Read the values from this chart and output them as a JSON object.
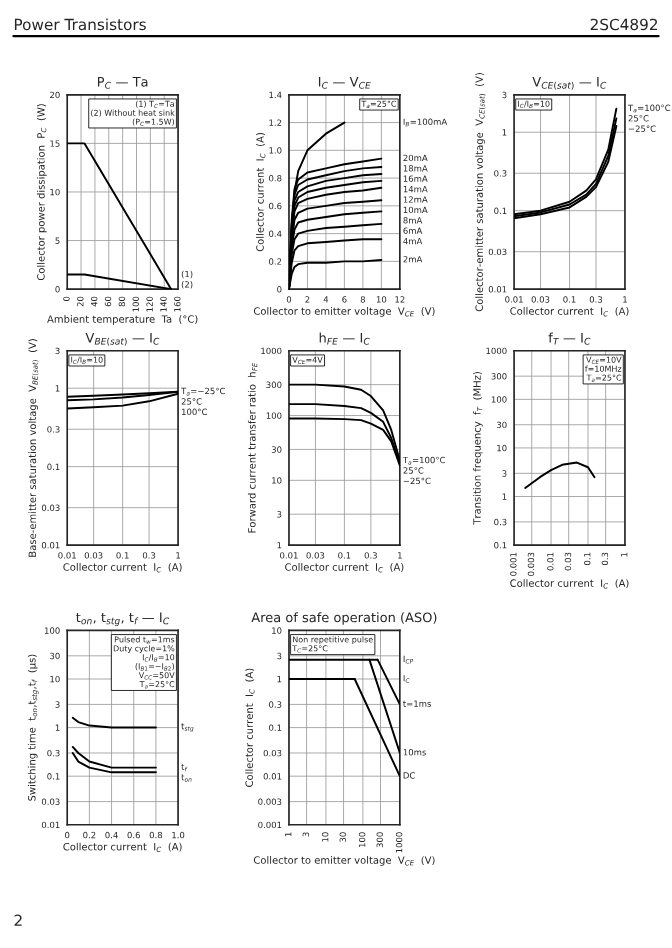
{
  "chart_data": [
    {
      "type": "other",
      "annotations": [
        "Power Transistors",
        "2SC4892",
        "2"
      ]
    },
    {
      "type": "line",
      "title": "P$_{C}$ — Ta",
      "xlabel": "Ambient temperature  Ta  (°C)",
      "ylabel": "Collector power dissipation  P$_{C}$  (W)",
      "xlim": [
        0,
        160
      ],
      "xticks": [
        0,
        20,
        40,
        60,
        80,
        100,
        120,
        140,
        160
      ],
      "ylim": [
        0,
        20
      ],
      "yticks": [
        0,
        5,
        10,
        15,
        20
      ],
      "grid": true,
      "legend": false,
      "annotations": [
        "(1) T$_{C}$=Ta\n(2) Without heat sink\n(P$_{C}$=1.5W)"
      ],
      "series": [
        {
          "name": "(1)",
          "color": "#000000",
          "x": [
            0,
            25,
            150
          ],
          "values": [
            15,
            15,
            0
          ]
        },
        {
          "name": "(2)",
          "color": "#000000",
          "x": [
            0,
            25,
            150
          ],
          "values": [
            1.5,
            1.5,
            0
          ]
        }
      ]
    },
    {
      "type": "line",
      "title": "I$_{C}$ — V$_{CE}$",
      "xlabel": "Collector to emitter voltage  V$_{CE}$  (V)",
      "ylabel": "Collector current  I$_{C}$  (A)",
      "xlim": [
        0,
        12
      ],
      "xticks": [
        0,
        2,
        4,
        6,
        8,
        10,
        12
      ],
      "ylim": [
        0,
        1.4
      ],
      "yticks": [
        0,
        0.2,
        0.4,
        0.6,
        0.8,
        {
          "value": 1.0,
          "label": "1.0"
        },
        1.2,
        1.4
      ],
      "grid": true,
      "annotations": [
        "T$_{a}$=25°C"
      ],
      "series": [
        {
          "name": "I$_{B}$=100mA",
          "color": "#000000",
          "x": [
            0,
            0.3,
            0.6,
            1,
            2,
            4,
            6
          ],
          "values": [
            0,
            0.45,
            0.7,
            0.85,
            1.0,
            1.12,
            1.2
          ]
        },
        {
          "name": "20mA",
          "color": "#000000",
          "x": [
            0,
            0.3,
            0.6,
            1,
            2,
            4,
            6,
            8,
            10
          ],
          "values": [
            0,
            0.5,
            0.72,
            0.79,
            0.84,
            0.87,
            0.9,
            0.92,
            0.94
          ]
        },
        {
          "name": "18mA",
          "color": "#000000",
          "x": [
            0,
            0.3,
            0.6,
            1,
            2,
            4,
            6,
            8,
            10
          ],
          "values": [
            0,
            0.47,
            0.68,
            0.75,
            0.79,
            0.82,
            0.85,
            0.87,
            0.88
          ]
        },
        {
          "name": "16mA",
          "color": "#000000",
          "x": [
            0,
            0.3,
            0.6,
            1,
            2,
            4,
            6,
            8,
            10
          ],
          "values": [
            0,
            0.44,
            0.64,
            0.7,
            0.74,
            0.78,
            0.8,
            0.82,
            0.83
          ]
        },
        {
          "name": "14mA",
          "color": "#000000",
          "x": [
            0,
            0.3,
            0.6,
            1,
            2,
            4,
            6,
            8,
            10
          ],
          "values": [
            0,
            0.41,
            0.6,
            0.66,
            0.7,
            0.73,
            0.75,
            0.77,
            0.78
          ]
        },
        {
          "name": "12mA",
          "color": "#000000",
          "x": [
            0,
            0.3,
            0.6,
            1,
            2,
            4,
            6,
            8,
            10
          ],
          "values": [
            0,
            0.39,
            0.56,
            0.62,
            0.65,
            0.68,
            0.7,
            0.71,
            0.73
          ]
        },
        {
          "name": "10mA",
          "color": "#000000",
          "x": [
            0,
            0.3,
            0.6,
            1,
            2,
            4,
            6,
            8,
            10
          ],
          "values": [
            0,
            0.34,
            0.5,
            0.55,
            0.58,
            0.6,
            0.62,
            0.63,
            0.64
          ]
        },
        {
          "name": "8mA",
          "color": "#000000",
          "x": [
            0,
            0.3,
            0.6,
            1,
            2,
            4,
            6,
            8,
            10
          ],
          "values": [
            0,
            0.3,
            0.43,
            0.48,
            0.5,
            0.52,
            0.54,
            0.55,
            0.56
          ]
        },
        {
          "name": "6mA",
          "color": "#000000",
          "x": [
            0,
            0.3,
            0.6,
            1,
            2,
            4,
            6,
            8,
            10
          ],
          "values": [
            0,
            0.25,
            0.36,
            0.4,
            0.42,
            0.44,
            0.45,
            0.46,
            0.47
          ]
        },
        {
          "name": "4mA",
          "color": "#000000",
          "x": [
            0,
            0.3,
            0.6,
            1,
            2,
            4,
            6,
            8,
            10
          ],
          "values": [
            0,
            0.19,
            0.28,
            0.31,
            0.33,
            0.34,
            0.35,
            0.36,
            0.36
          ]
        },
        {
          "name": "2mA",
          "color": "#000000",
          "x": [
            0,
            0.3,
            0.6,
            1,
            2,
            4,
            6,
            8,
            10
          ],
          "values": [
            0,
            0.11,
            0.16,
            0.18,
            0.19,
            0.19,
            0.2,
            0.2,
            0.21
          ]
        }
      ]
    },
    {
      "type": "line",
      "title": "V$_{CE(sat)}$ — I$_{C}$",
      "xlabel": "Collector current  I$_{C}$  (A)",
      "ylabel": "Collector-emitter saturation voltage  V$_{CE(sat)}$  (V)",
      "log": "xy",
      "xlim": [
        0.01,
        1
      ],
      "xticks": [
        0.01,
        0.03,
        0.1,
        0.3,
        1
      ],
      "ylim": [
        0.01,
        3
      ],
      "yticks": [
        0.01,
        0.03,
        0.1,
        0.3,
        1,
        3
      ],
      "grid": true,
      "legend": false,
      "annotations": [
        "I$_{C}$/I$_{B}$=10"
      ],
      "series": [
        {
          "name": "T$_{a}$=100°C",
          "color": "#000000",
          "x": [
            0.01,
            0.03,
            0.1,
            0.2,
            0.3,
            0.5,
            0.7
          ],
          "values": [
            0.09,
            0.1,
            0.13,
            0.18,
            0.25,
            0.6,
            2
          ]
        },
        {
          "name": "25°C",
          "color": "#000000",
          "x": [
            0.01,
            0.03,
            0.1,
            0.2,
            0.3,
            0.5,
            0.7
          ],
          "values": [
            0.085,
            0.095,
            0.12,
            0.16,
            0.22,
            0.5,
            1.5
          ]
        },
        {
          "name": "−25°C",
          "color": "#000000",
          "x": [
            0.01,
            0.03,
            0.1,
            0.2,
            0.3,
            0.5,
            0.7
          ],
          "values": [
            0.08,
            0.09,
            0.11,
            0.15,
            0.2,
            0.42,
            1.2
          ]
        }
      ]
    },
    {
      "type": "line",
      "title": "V$_{BE(sat)}$ — I$_{C}$",
      "xlabel": "Collector current  I$_{C}$  (A)",
      "ylabel": "Base-emitter saturation voltage  V$_{BE(sat)}$  (V)",
      "log": "xy",
      "xlim": [
        0.01,
        1
      ],
      "xticks": [
        0.01,
        0.03,
        0.1,
        0.3,
        1
      ],
      "ylim": [
        0.01,
        3
      ],
      "yticks": [
        0.01,
        0.03,
        0.1,
        0.3,
        1,
        3
      ],
      "grid": true,
      "legend": false,
      "annotations": [
        "I$_{C}$/I$_{B}$=10"
      ],
      "series": [
        {
          "name": "T$_{a}$=−25°C",
          "color": "#000000",
          "x": [
            0.01,
            0.03,
            0.1,
            0.3,
            1
          ],
          "values": [
            0.78,
            0.8,
            0.83,
            0.86,
            0.9
          ]
        },
        {
          "name": "25°C",
          "color": "#000000",
          "x": [
            0.01,
            0.03,
            0.1,
            0.3,
            1
          ],
          "values": [
            0.7,
            0.72,
            0.76,
            0.82,
            0.9
          ]
        },
        {
          "name": "100°C",
          "color": "#000000",
          "x": [
            0.01,
            0.03,
            0.1,
            0.3,
            1
          ],
          "values": [
            0.55,
            0.57,
            0.6,
            0.68,
            0.85
          ]
        }
      ]
    },
    {
      "type": "line",
      "title": "h$_{FE}$ — I$_{C}$",
      "xlabel": "Collector current  I$_{C}$  (A)",
      "ylabel": "Forward current transfer ratio  h$_{FE}$",
      "log": "xy",
      "xlim": [
        0.01,
        1
      ],
      "xticks": [
        0.01,
        0.03,
        0.1,
        0.3,
        1
      ],
      "ylim": [
        1,
        1000
      ],
      "yticks": [
        1,
        3,
        10,
        30,
        100,
        300,
        1000
      ],
      "grid": true,
      "legend": false,
      "annotations": [
        "V$_{CE}$=4V"
      ],
      "series": [
        {
          "name": "T$_{a}$=100°C",
          "color": "#000000",
          "x": [
            0.01,
            0.03,
            0.1,
            0.2,
            0.3,
            0.5,
            0.7,
            1
          ],
          "values": [
            300,
            300,
            280,
            250,
            200,
            120,
            60,
            20
          ]
        },
        {
          "name": "25°C",
          "color": "#000000",
          "x": [
            0.01,
            0.03,
            0.1,
            0.2,
            0.3,
            0.5,
            0.7,
            1
          ],
          "values": [
            150,
            150,
            140,
            130,
            110,
            80,
            45,
            18
          ]
        },
        {
          "name": "−25°C",
          "color": "#000000",
          "x": [
            0.01,
            0.03,
            0.1,
            0.2,
            0.3,
            0.5,
            0.7,
            1
          ],
          "values": [
            90,
            90,
            88,
            85,
            75,
            60,
            40,
            17
          ]
        }
      ]
    },
    {
      "type": "line",
      "title": "f$_{T}$ — I$_{C}$",
      "xlabel": "Collector current  I$_{C}$  (A)",
      "ylabel": "Transition frequency  f$_{T}$  (MHz)",
      "log": "xy",
      "xlim": [
        0.001,
        1
      ],
      "xticks": [
        0.001,
        0.003,
        0.01,
        0.03,
        0.1,
        0.3,
        1
      ],
      "ylim": [
        0.1,
        1000
      ],
      "yticks": [
        0.1,
        0.3,
        1,
        3,
        10,
        30,
        100,
        300,
        1000
      ],
      "grid": true,
      "legend": false,
      "annotations": [
        "V$_{CE}$=10V\nf=10MHz\nT$_{a}$=25°C"
      ],
      "series": [
        {
          "color": "#000000",
          "x": [
            0.002,
            0.005,
            0.01,
            0.02,
            0.05,
            0.1,
            0.15
          ],
          "values": [
            1.5,
            2.5,
            3.5,
            4.5,
            5,
            4,
            2.5
          ]
        }
      ]
    },
    {
      "type": "line",
      "title": "t$_{on}$, t$_{stg}$, t$_{f}$ — I$_{C}$",
      "xlabel": "Collector current  I$_{C}$  (A)",
      "ylabel": "Switching time  t$_{on}$,t$_{stg}$,t$_{f}$  (µs)",
      "log": "y",
      "xlim": [
        0,
        1.0
      ],
      "xticks": [
        0,
        0.2,
        0.4,
        0.6,
        0.8,
        {
          "value": 1.0,
          "label": "1.0"
        }
      ],
      "ylim": [
        0.01,
        100
      ],
      "yticks": [
        0.01,
        0.03,
        0.1,
        0.3,
        1,
        3,
        10,
        30,
        100
      ],
      "grid": true,
      "legend": false,
      "annotations": [
        "Pulsed t$_{w}$=1ms\nDuty cycle=1%\nI$_{C}$/I$_{B}$=10\n(I$_{B1}$=−I$_{B2}$)\nV$_{CC}$=50V\nT$_{a}$=25°C"
      ],
      "series": [
        {
          "name": "t$_{stg}$",
          "color": "#000000",
          "x": [
            0.05,
            0.1,
            0.2,
            0.4,
            0.6,
            0.8
          ],
          "values": [
            1.6,
            1.3,
            1.1,
            1.0,
            1.0,
            1.0
          ]
        },
        {
          "name": "t$_{f}$",
          "color": "#000000",
          "x": [
            0.05,
            0.1,
            0.2,
            0.4,
            0.6,
            0.8
          ],
          "values": [
            0.4,
            0.3,
            0.2,
            0.15,
            0.15,
            0.15
          ]
        },
        {
          "name": "t$_{on}$",
          "color": "#000000",
          "x": [
            0.05,
            0.1,
            0.2,
            0.4,
            0.6,
            0.8
          ],
          "values": [
            0.3,
            0.2,
            0.15,
            0.12,
            0.12,
            0.12
          ]
        }
      ]
    },
    {
      "type": "line",
      "title": "Area of safe operation (ASO)",
      "xlabel": "Collector to emitter voltage  V$_{CE}$  (V)",
      "ylabel": "Collector current  I$_{C}$  (A)",
      "log": "xy",
      "xlim": [
        1,
        1000
      ],
      "xticks": [
        1,
        3,
        10,
        30,
        100,
        300,
        1000
      ],
      "ylim": [
        0.001,
        10
      ],
      "yticks": [
        0.001,
        0.003,
        0.01,
        0.03,
        0.1,
        0.3,
        1,
        3,
        10
      ],
      "grid": true,
      "legend": false,
      "annotations": [
        "Non repetitive pulse\nT$_{C}$=25°C"
      ],
      "series": [
        {
          "name": "I$_{CP}$",
          "color": "#000000",
          "x": [
            1,
            250
          ],
          "values": [
            2.5,
            2.5
          ]
        },
        {
          "name": "I$_{C}$",
          "color": "#000000",
          "x": [
            1,
            60
          ],
          "values": [
            1,
            1
          ]
        },
        {
          "name": "t=1ms",
          "color": "#000000",
          "x": [
            250,
            1000
          ],
          "values": [
            2.5,
            0.3
          ]
        },
        {
          "name": "10ms",
          "color": "#000000",
          "x": [
            150,
            1000
          ],
          "values": [
            2.5,
            0.03
          ]
        },
        {
          "name": "DC",
          "color": "#000000",
          "x": [
            60,
            1000
          ],
          "values": [
            1,
            0.01
          ]
        }
      ]
    }
  ]
}
